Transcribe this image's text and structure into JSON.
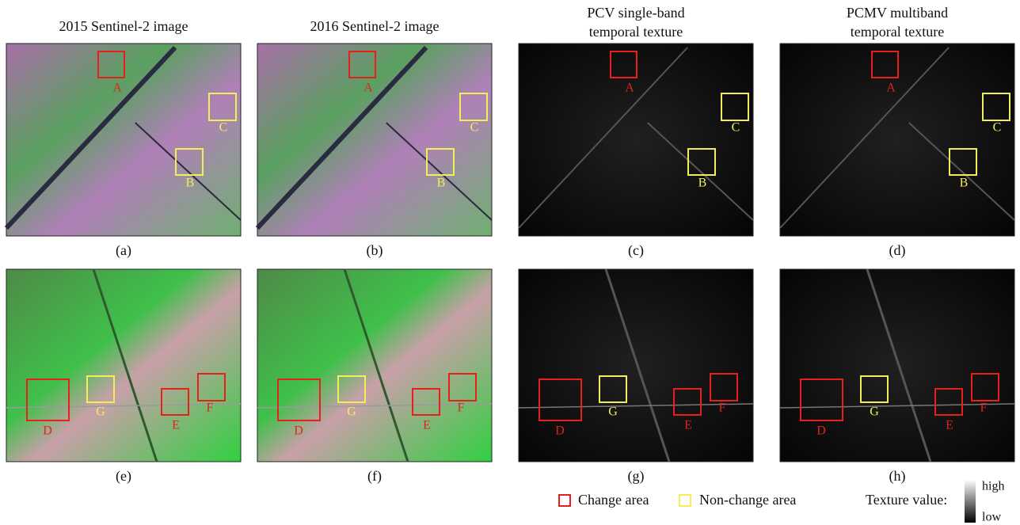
{
  "panels": [
    {
      "title": [
        "2015 Sentinel-2 image"
      ],
      "caption": "(a)",
      "boxes": [
        {
          "label": "A",
          "color": "#e8201c"
        },
        {
          "label": "C",
          "color": "#f2ee5a"
        },
        {
          "label": "B",
          "color": "#f2ee5a"
        }
      ]
    },
    {
      "title": [
        "2016 Sentinel-2 image"
      ],
      "caption": "(b)",
      "boxes": [
        {
          "label": "A",
          "color": "#e8201c"
        },
        {
          "label": "C",
          "color": "#f2ee5a"
        },
        {
          "label": "B",
          "color": "#f2ee5a"
        }
      ]
    },
    {
      "title": [
        "PCV single-band",
        "temporal texture"
      ],
      "caption": "(c)",
      "boxes": [
        {
          "label": "A",
          "color": "#e8201c"
        },
        {
          "label": "C",
          "color": "#f2ee5a"
        },
        {
          "label": "B",
          "color": "#f2ee5a"
        }
      ]
    },
    {
      "title": [
        "PCMV multiband",
        "temporal texture"
      ],
      "caption": "(d)",
      "boxes": [
        {
          "label": "A",
          "color": "#e8201c"
        },
        {
          "label": "C",
          "color": "#f2ee5a"
        },
        {
          "label": "B",
          "color": "#f2ee5a"
        }
      ]
    },
    {
      "caption": "(e)",
      "boxes": [
        {
          "label": "D",
          "color": "#e8201c"
        },
        {
          "label": "G",
          "color": "#f2ee5a"
        },
        {
          "label": "E",
          "color": "#e8201c"
        },
        {
          "label": "F",
          "color": "#e8201c"
        }
      ]
    },
    {
      "caption": "(f)",
      "boxes": [
        {
          "label": "D",
          "color": "#e8201c"
        },
        {
          "label": "G",
          "color": "#f2ee5a"
        },
        {
          "label": "E",
          "color": "#e8201c"
        },
        {
          "label": "F",
          "color": "#e8201c"
        }
      ]
    },
    {
      "caption": "(g)",
      "boxes": [
        {
          "label": "D",
          "color": "#e8201c"
        },
        {
          "label": "G",
          "color": "#f2ee5a"
        },
        {
          "label": "E",
          "color": "#e8201c"
        },
        {
          "label": "F",
          "color": "#e8201c"
        }
      ]
    },
    {
      "caption": "(h)",
      "boxes": [
        {
          "label": "D",
          "color": "#e8201c"
        },
        {
          "label": "G",
          "color": "#f2ee5a"
        },
        {
          "label": "E",
          "color": "#e8201c"
        },
        {
          "label": "F",
          "color": "#e8201c"
        }
      ]
    }
  ],
  "legend": {
    "change": {
      "text": "Change area",
      "color": "#e8201c"
    },
    "non_change": {
      "text": "Non-change area",
      "color": "#f2ee5a"
    },
    "texture": {
      "title": "Texture value:",
      "high": "high",
      "low": "low"
    }
  }
}
